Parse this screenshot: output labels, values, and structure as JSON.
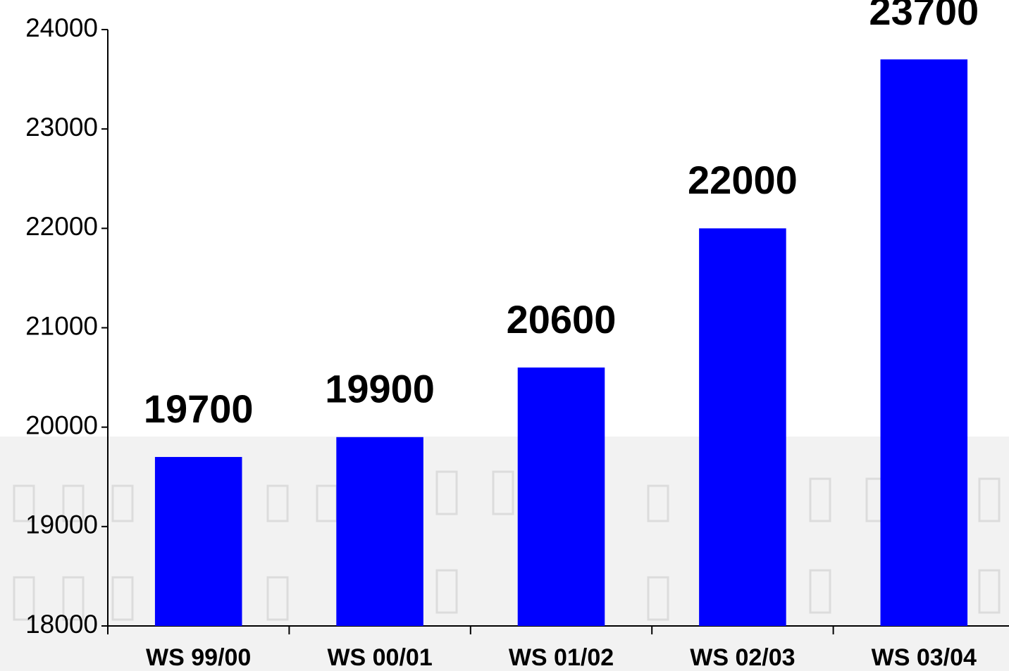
{
  "chart_data": {
    "type": "bar",
    "categories": [
      "WS 99/00",
      "WS 00/01",
      "WS 01/02",
      "WS 02/03",
      "WS 03/04"
    ],
    "values": [
      19700,
      19900,
      20600,
      22000,
      23700
    ],
    "color": "#0000ff",
    "ylim": [
      18000,
      24000
    ],
    "yticks": [
      18000,
      19000,
      20000,
      21000,
      22000,
      23000,
      24000
    ],
    "grid": false
  }
}
